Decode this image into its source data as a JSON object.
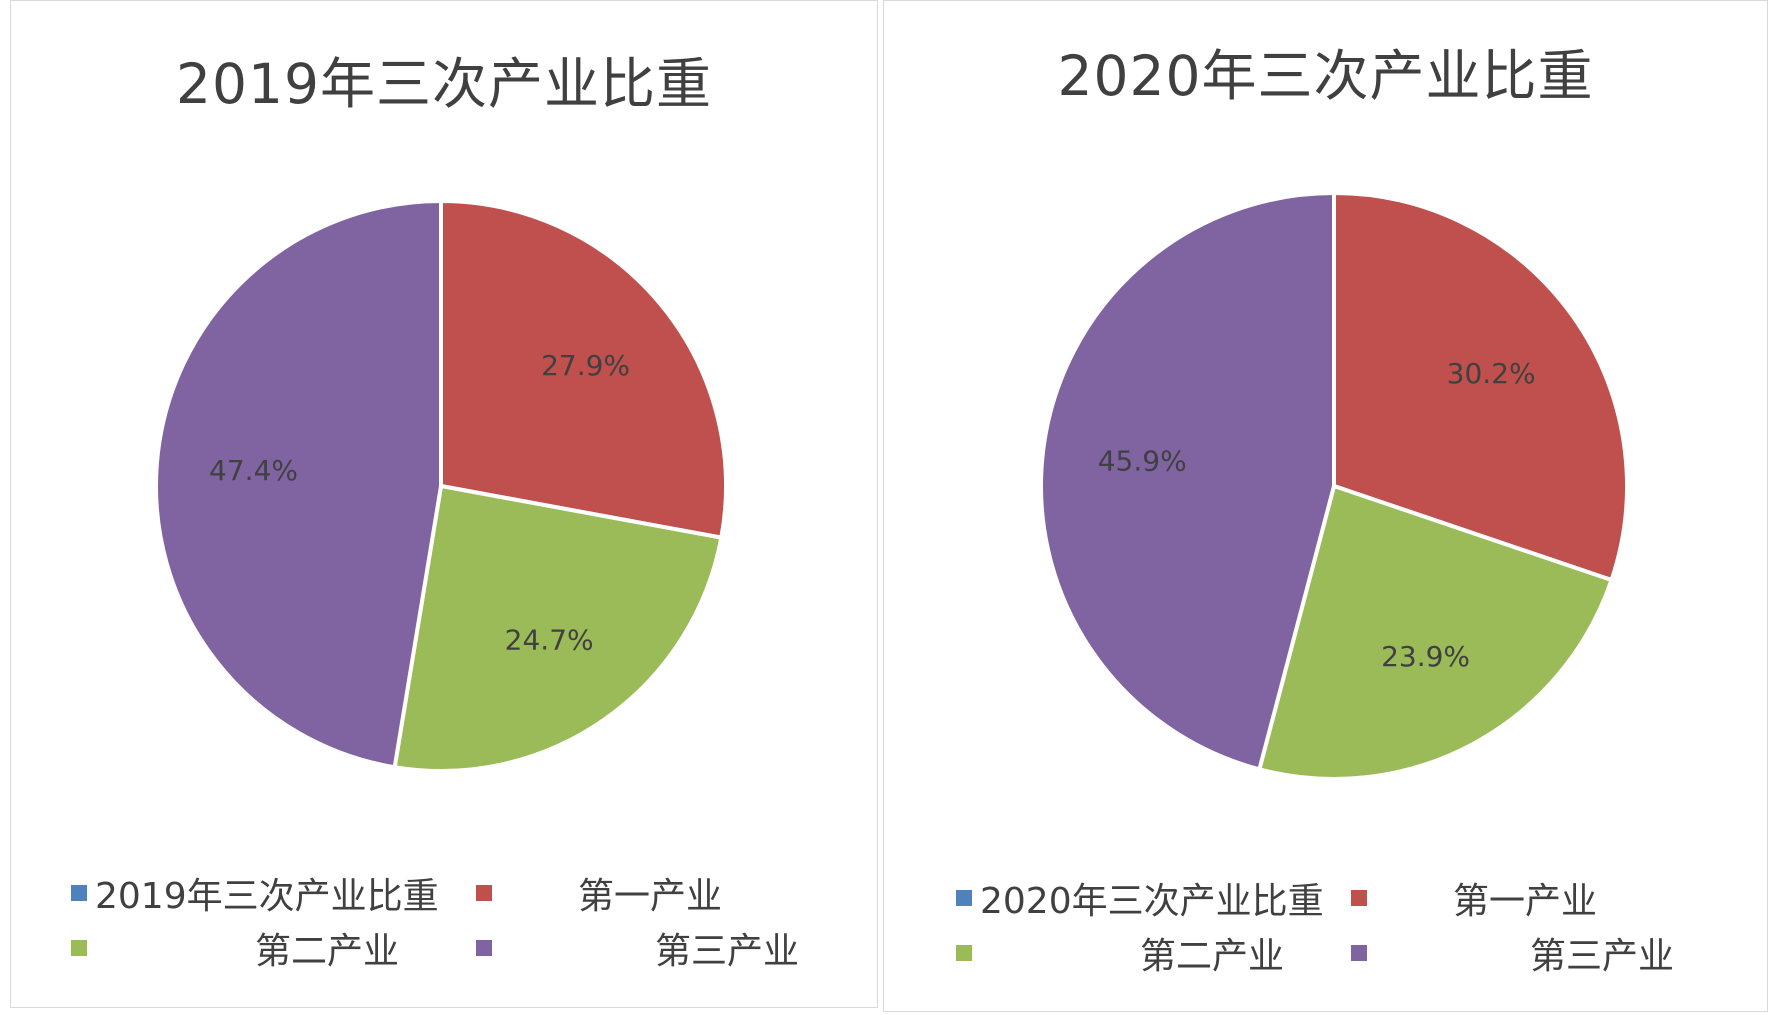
{
  "colors": {
    "first": "#c0504d",
    "second": "#9bbb59",
    "third": "#8064a2",
    "blue": "#4f81bd"
  },
  "chart_data": [
    {
      "type": "pie",
      "title": "2019年三次产业比重",
      "categories": [
        "第一产业",
        "第二产业",
        "第三产业"
      ],
      "values": [
        27.9,
        24.7,
        47.4
      ],
      "value_labels": [
        "27.9%",
        "24.7%",
        "47.4%"
      ],
      "legend_entries": [
        "2019年三次产业比重",
        "第一产业",
        "第二产业",
        "第三产业"
      ],
      "legend_position": "bottom"
    },
    {
      "type": "pie",
      "title": "2020年三次产业比重",
      "categories": [
        "第一产业",
        "第二产业",
        "第三产业"
      ],
      "values": [
        30.2,
        23.9,
        45.9
      ],
      "value_labels": [
        "30.2%",
        "23.9%",
        "45.9%"
      ],
      "legend_entries": [
        "2020年三次产业比重",
        "第一产业",
        "第二产业",
        "第三产业"
      ],
      "legend_position": "bottom"
    }
  ]
}
